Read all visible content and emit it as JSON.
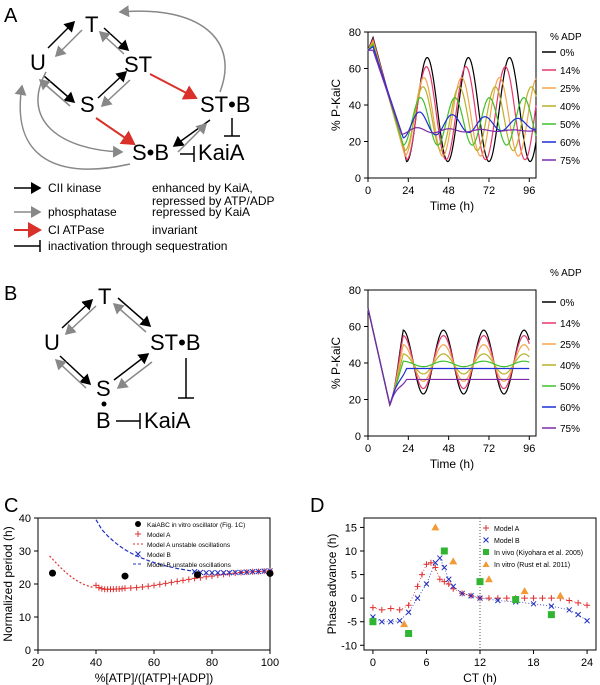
{
  "panels": {
    "A": "A",
    "B": "B",
    "C": "C",
    "D": "D"
  },
  "diagramA": {
    "nodes": {
      "T": "T",
      "U": "U",
      "ST": "ST",
      "S": "S",
      "STB": "ST•B",
      "SB": "S•B",
      "KaiA": "KaiA"
    },
    "legend": [
      {
        "color": "#000000",
        "label": "CII kinase",
        "desc": "enhanced by KaiA, repressed by ATP/ADP"
      },
      {
        "color": "#888888",
        "label": "phosphatase",
        "desc": "repressed by KaiA"
      },
      {
        "color": "#d9302a",
        "label": "CI ATPase",
        "desc": "invariant"
      },
      {
        "color": "#000000",
        "label": "inactivation through sequestration",
        "desc": ""
      }
    ],
    "legend_desc_line2": "repressed by ATP/ADP"
  },
  "diagramB": {
    "nodes": {
      "T": "T",
      "U": "U",
      "S": "S",
      "STB": "ST•B",
      "B": "B",
      "KaiA": "KaiA"
    }
  },
  "chart_data": [
    {
      "id": "A",
      "type": "line",
      "xlabel": "Time (h)",
      "ylabel": "% P-KaiC",
      "xlim": [
        0,
        100
      ],
      "ylim": [
        0,
        80
      ],
      "xticks": [
        0,
        24,
        48,
        72,
        96
      ],
      "yticks": [
        0,
        20,
        40,
        60,
        80
      ],
      "legend_title": "% ADP",
      "series": [
        {
          "name": "0%",
          "color": "#000000",
          "period": 24.5,
          "trough": 9,
          "peak": 66,
          "first_peak": 77,
          "first_trough_t": 23,
          "amp_decay": 0
        },
        {
          "name": "14%",
          "color": "#e8376b",
          "period": 23.5,
          "trough": 10,
          "peak": 61,
          "first_peak": 76,
          "first_trough_t": 23,
          "amp_decay": 0
        },
        {
          "name": "25%",
          "color": "#f2a54a",
          "period": 22.5,
          "trough": 12,
          "peak": 55,
          "first_peak": 75,
          "first_trough_t": 22,
          "amp_decay": 0
        },
        {
          "name": "40%",
          "color": "#b8b02a",
          "period": 21.5,
          "trough": 15,
          "peak": 50,
          "first_peak": 74,
          "first_trough_t": 22,
          "amp_decay": 0
        },
        {
          "name": "50%",
          "color": "#3fbf2a",
          "period": 20.5,
          "trough": 18,
          "peak": 44,
          "first_peak": 73,
          "first_trough_t": 21,
          "amp_decay": 0
        },
        {
          "name": "60%",
          "color": "#1d2fd6",
          "period": 19.5,
          "trough": 22,
          "peak": 37,
          "first_peak": 72,
          "first_trough_t": 21,
          "amp_decay": 0.3
        },
        {
          "name": "75%",
          "color": "#7a2aa8",
          "period": 19,
          "trough": 24,
          "peak": 28,
          "first_peak": 70,
          "first_trough_t": 20,
          "amp_decay": 0.6
        }
      ]
    },
    {
      "id": "B",
      "type": "line",
      "xlabel": "Time (h)",
      "ylabel": "% P-KaiC",
      "xlim": [
        0,
        100
      ],
      "ylim": [
        0,
        80
      ],
      "xticks": [
        0,
        24,
        48,
        72,
        96
      ],
      "yticks": [
        0,
        20,
        40,
        60,
        80
      ],
      "legend_title": "% ADP",
      "series": [
        {
          "name": "0%",
          "color": "#000000",
          "period": 24,
          "trough": 23,
          "peak": 58,
          "steady": null
        },
        {
          "name": "14%",
          "color": "#e8376b",
          "period": 24,
          "trough": 26,
          "peak": 55,
          "steady": null
        },
        {
          "name": "25%",
          "color": "#f2a54a",
          "period": 24,
          "trough": 30,
          "peak": 50,
          "steady": null
        },
        {
          "name": "40%",
          "color": "#b8b02a",
          "period": 24,
          "trough": 34,
          "peak": 45,
          "steady": null
        },
        {
          "name": "50%",
          "color": "#3fbf2a",
          "period": 24,
          "trough": 38,
          "peak": 41,
          "steady": 40
        },
        {
          "name": "60%",
          "color": "#1d2fd6",
          "steady": 37
        },
        {
          "name": "75%",
          "color": "#7a2aa8",
          "steady": 31
        }
      ]
    },
    {
      "id": "C",
      "type": "scatter",
      "xlabel": "%[ATP]/([ATP]+[ADP])",
      "ylabel": "Normalized period (h)",
      "xlim": [
        20,
        100
      ],
      "ylim": [
        0,
        40
      ],
      "xticks": [
        20,
        40,
        60,
        80,
        100
      ],
      "yticks": [
        0,
        10,
        20,
        30,
        40
      ],
      "legend": [
        "KaiABC in vitro oscillator (Fig. 1C)",
        "Model A",
        "Model A unstable oscillations",
        "Model B",
        "Model  B unstable oscillations"
      ],
      "in_vitro": {
        "x": [
          25,
          50,
          75,
          100
        ],
        "y": [
          23.3,
          22.4,
          22.8,
          23.2
        ]
      },
      "modelA_unstable": {
        "x": [
          24,
          26,
          28,
          30,
          32,
          34,
          36,
          38,
          39
        ],
        "y": [
          28.5,
          26.6,
          24.8,
          23.2,
          21.8,
          20.7,
          19.8,
          19.2,
          19.0
        ]
      },
      "modelA": {
        "x": [
          40,
          41,
          42,
          43,
          44,
          45,
          46,
          47,
          48,
          49,
          50,
          52,
          54,
          56,
          58,
          60,
          62,
          64,
          66,
          68,
          70,
          72,
          74,
          76,
          78,
          80,
          82,
          84,
          86,
          88,
          90,
          92,
          94,
          96,
          98,
          100
        ],
        "y": [
          19.6,
          18.9,
          18.6,
          18.4,
          18.4,
          18.4,
          18.4,
          18.5,
          18.5,
          18.6,
          18.7,
          18.8,
          18.9,
          19.1,
          19.3,
          19.6,
          19.9,
          20.2,
          20.5,
          20.8,
          21.1,
          21.4,
          21.7,
          21.9,
          22.2,
          22.4,
          22.7,
          22.9,
          23.1,
          23.3,
          23.5,
          23.6,
          23.7,
          23.8,
          23.9,
          24.0
        ]
      },
      "modelB_unstable": {
        "x": [
          40,
          42,
          44,
          46,
          48,
          50,
          52,
          54,
          56,
          58,
          60,
          62,
          64,
          66,
          68,
          70,
          72,
          74
        ],
        "y": [
          39.5,
          36.5,
          34.6,
          33.0,
          31.6,
          30.4,
          29.4,
          28.5,
          27.8,
          27.1,
          26.5,
          26.0,
          25.5,
          25.1,
          24.7,
          24.4,
          24.1,
          23.9
        ]
      },
      "modelB": {
        "x": [
          74,
          76,
          78,
          80,
          82,
          84,
          86,
          88,
          90,
          92,
          94,
          96,
          98,
          100
        ],
        "y": [
          23.7,
          23.5,
          23.4,
          23.4,
          23.4,
          23.4,
          23.4,
          23.5,
          23.5,
          23.6,
          23.7,
          23.8,
          23.9,
          24.0
        ]
      }
    },
    {
      "id": "D",
      "type": "scatter",
      "xlabel": "CT (h)",
      "ylabel": "Phase advance (h)",
      "xlim": [
        -1,
        25
      ],
      "ylim": [
        -11,
        17
      ],
      "xticks": [
        0,
        6,
        12,
        18,
        24
      ],
      "yticks": [
        -10,
        -5,
        0,
        5,
        10,
        15
      ],
      "vline": 12,
      "legend": [
        "Model A",
        "Model B",
        "In vivo (Kiyohara et al. 2005)",
        "In vitro (Rust et al. 2011)"
      ],
      "modelA": {
        "x": [
          0,
          1,
          2,
          3,
          4,
          5,
          5.5,
          6,
          6.5,
          7,
          7.5,
          8,
          8.5,
          9,
          10,
          11,
          12,
          13,
          14,
          15,
          16,
          17,
          18,
          19,
          20,
          21,
          22,
          23,
          24
        ],
        "y": [
          -2,
          -2.5,
          -2.2,
          -2.5,
          -1.5,
          2.5,
          5,
          7.2,
          7.5,
          6.5,
          4,
          3.5,
          3,
          2,
          1,
          0.5,
          0,
          0,
          0,
          0,
          0,
          0,
          0,
          0,
          0,
          0,
          -0.5,
          -1,
          -1.5
        ]
      },
      "modelB": {
        "x": [
          0,
          1,
          2,
          3,
          4,
          5,
          6,
          7,
          7.5,
          8,
          8.5,
          9,
          10,
          11,
          12,
          14,
          16,
          18,
          20,
          22,
          23,
          24
        ],
        "y": [
          -4,
          -5,
          -5,
          -4.8,
          -3,
          0,
          3,
          7.5,
          8.5,
          6.5,
          4,
          2.5,
          1,
          0.5,
          0,
          -0.5,
          -0.8,
          -1.2,
          -1.7,
          -2.5,
          -3.5,
          -4.8
        ]
      },
      "in_vivo": {
        "x": [
          0,
          4,
          8,
          12,
          16,
          20
        ],
        "y": [
          -5,
          -7.5,
          10,
          3.5,
          -0.3,
          -3.5
        ]
      },
      "in_vitro": {
        "x": [
          3.5,
          7,
          9,
          13,
          17,
          21
        ],
        "y": [
          -5.5,
          15,
          7.8,
          4,
          1.5,
          0.5
        ]
      }
    }
  ]
}
